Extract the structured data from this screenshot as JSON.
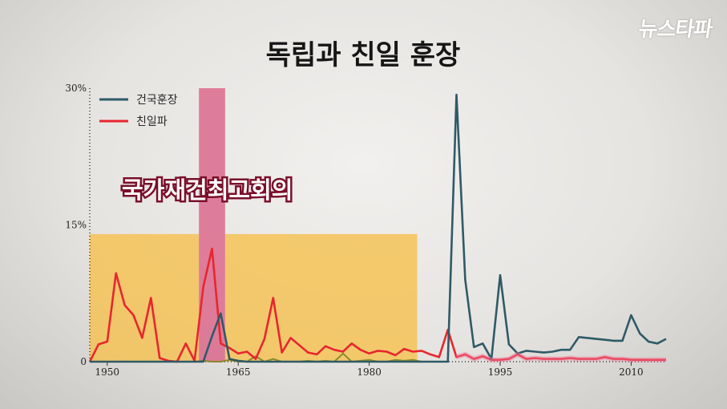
{
  "logo_text": "뉴스타파",
  "chart_data": {
    "type": "line",
    "title": "독립과 친일 훈장",
    "xlabel": "",
    "ylabel": "",
    "x_ticks": [
      "1950",
      "1965",
      "1980",
      "1995",
      "2010"
    ],
    "y_ticks": [
      "30%",
      "15%",
      "0"
    ],
    "xlim": [
      1948,
      2014
    ],
    "ylim": [
      0,
      30
    ],
    "legend_position": "top-left",
    "annotation": "국가재건최고회의",
    "highlight_ranges": [
      {
        "from": 1948,
        "to": 1960.5,
        "color": "#f5c04e"
      },
      {
        "from": 1963.5,
        "to": 1985.5,
        "color": "#f5c04e"
      },
      {
        "from": 1960.5,
        "to": 1963.5,
        "color": "#d94f7a"
      }
    ],
    "series": [
      {
        "name": "건국훈장",
        "color": "#2f5a66",
        "points": [
          [
            1948,
            0
          ],
          [
            1949,
            0
          ],
          [
            1950,
            0
          ],
          [
            1951,
            0
          ],
          [
            1952,
            0
          ],
          [
            1953,
            0
          ],
          [
            1954,
            0
          ],
          [
            1955,
            0
          ],
          [
            1956,
            0
          ],
          [
            1957,
            0
          ],
          [
            1958,
            0
          ],
          [
            1959,
            0
          ],
          [
            1960,
            0
          ],
          [
            1961,
            0
          ],
          [
            1962,
            2.8
          ],
          [
            1963,
            5.3
          ],
          [
            1964,
            0.3
          ],
          [
            1965,
            0.1
          ],
          [
            1966,
            0
          ],
          [
            1967,
            0
          ],
          [
            1968,
            0
          ],
          [
            1969,
            0
          ],
          [
            1970,
            0
          ],
          [
            1971,
            0
          ],
          [
            1972,
            0
          ],
          [
            1973,
            0
          ],
          [
            1974,
            0
          ],
          [
            1975,
            0
          ],
          [
            1976,
            0
          ],
          [
            1977,
            0
          ],
          [
            1978,
            0
          ],
          [
            1979,
            0
          ],
          [
            1980,
            0
          ],
          [
            1981,
            0
          ],
          [
            1982,
            0
          ],
          [
            1983,
            0
          ],
          [
            1984,
            0
          ],
          [
            1985,
            0
          ],
          [
            1986,
            0
          ],
          [
            1987,
            0
          ],
          [
            1988,
            0
          ],
          [
            1989,
            0
          ],
          [
            1990,
            29.3
          ],
          [
            1991,
            9
          ],
          [
            1992,
            1.6
          ],
          [
            1993,
            2
          ],
          [
            1994,
            0.3
          ],
          [
            1995,
            9.5
          ],
          [
            1996,
            1.9
          ],
          [
            1997,
            0.9
          ],
          [
            1998,
            1.2
          ],
          [
            1999,
            1.1
          ],
          [
            2000,
            1
          ],
          [
            2001,
            1.1
          ],
          [
            2002,
            1.3
          ],
          [
            2003,
            1.3
          ],
          [
            2004,
            2.7
          ],
          [
            2005,
            2.6
          ],
          [
            2006,
            2.5
          ],
          [
            2007,
            2.4
          ],
          [
            2008,
            2.3
          ],
          [
            2009,
            2.3
          ],
          [
            2010,
            5.1
          ],
          [
            2011,
            3.1
          ],
          [
            2012,
            2.2
          ],
          [
            2013,
            2
          ],
          [
            2014,
            2.5
          ]
        ]
      },
      {
        "name": "친일파",
        "color": "#e8262e",
        "points": [
          [
            1948,
            0
          ],
          [
            1949,
            1.9
          ],
          [
            1950,
            2.2
          ],
          [
            1951,
            9.7
          ],
          [
            1952,
            6.2
          ],
          [
            1953,
            5.1
          ],
          [
            1954,
            2.6
          ],
          [
            1955,
            7
          ],
          [
            1956,
            0.4
          ],
          [
            1957,
            0.1
          ],
          [
            1958,
            0
          ],
          [
            1959,
            2
          ],
          [
            1960,
            0.1
          ],
          [
            1961,
            8.2
          ],
          [
            1962,
            12.4
          ],
          [
            1963,
            2
          ],
          [
            1964,
            1.5
          ],
          [
            1965,
            0.9
          ],
          [
            1966,
            1.1
          ],
          [
            1967,
            0.3
          ],
          [
            1968,
            2.5
          ],
          [
            1969,
            7
          ],
          [
            1970,
            1
          ],
          [
            1971,
            2.6
          ],
          [
            1972,
            1.8
          ],
          [
            1973,
            1
          ],
          [
            1974,
            0.8
          ],
          [
            1975,
            1.7
          ],
          [
            1976,
            1.3
          ],
          [
            1977,
            1.1
          ],
          [
            1978,
            2
          ],
          [
            1979,
            1.3
          ],
          [
            1980,
            0.9
          ],
          [
            1981,
            1.2
          ],
          [
            1982,
            1.1
          ],
          [
            1983,
            0.7
          ],
          [
            1984,
            1.4
          ],
          [
            1985,
            1.1
          ],
          [
            1986,
            1.2
          ],
          [
            1987,
            0.8
          ],
          [
            1988,
            0.5
          ],
          [
            1989,
            3.5
          ],
          [
            1990,
            0.5
          ],
          [
            1991,
            0.8
          ],
          [
            1992,
            0.3
          ],
          [
            1993,
            0.6
          ],
          [
            1994,
            0.2
          ],
          [
            1995,
            0.2
          ],
          [
            1996,
            0.3
          ],
          [
            1997,
            0.8
          ],
          [
            1998,
            0.3
          ],
          [
            1999,
            0.4
          ],
          [
            2000,
            0.3
          ],
          [
            2001,
            0.3
          ],
          [
            2002,
            0.3
          ],
          [
            2003,
            0.4
          ],
          [
            2004,
            0.3
          ],
          [
            2005,
            0.3
          ],
          [
            2006,
            0.3
          ],
          [
            2007,
            0.5
          ],
          [
            2008,
            0.3
          ],
          [
            2009,
            0.3
          ],
          [
            2010,
            0.2
          ],
          [
            2011,
            0.2
          ],
          [
            2012,
            0.2
          ],
          [
            2013,
            0.2
          ],
          [
            2014,
            0.2
          ]
        ]
      },
      {
        "color": "#8a8a2e",
        "points": [
          [
            1960,
            0
          ],
          [
            1961,
            0.1
          ],
          [
            1962,
            0
          ],
          [
            1963,
            0
          ],
          [
            1964,
            0.2
          ],
          [
            1965,
            0
          ],
          [
            1966,
            0
          ],
          [
            1967,
            0.6
          ],
          [
            1968,
            0
          ],
          [
            1969,
            0.3
          ],
          [
            1970,
            0
          ],
          [
            1971,
            0
          ],
          [
            1972,
            0
          ],
          [
            1973,
            0.1
          ],
          [
            1974,
            0
          ],
          [
            1975,
            0.1
          ],
          [
            1976,
            0
          ],
          [
            1977,
            0.9
          ],
          [
            1978,
            0
          ],
          [
            1979,
            0.1
          ],
          [
            1980,
            0.2
          ],
          [
            1981,
            0
          ],
          [
            1982,
            0
          ],
          [
            1983,
            0.2
          ],
          [
            1984,
            0.1
          ],
          [
            1985,
            0.2
          ],
          [
            1986,
            0
          ]
        ]
      }
    ]
  }
}
